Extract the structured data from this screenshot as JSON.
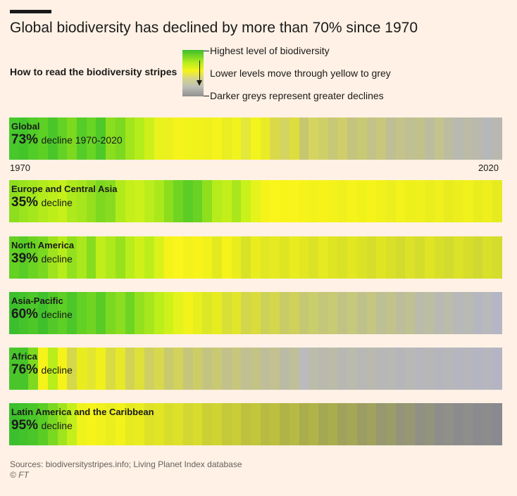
{
  "chart_data": {
    "type": "heatmap",
    "title": "Global biodiversity has declined by more than 70% since 1970",
    "legend": {
      "heading": "How to read the biodiversity stripes",
      "items": [
        "Highest level of biodiversity",
        "Lower levels move through yellow to grey",
        "Darker greys represent greater declines"
      ],
      "colors": [
        "#3cbf2c",
        "#b8ee1c",
        "#f6f31a",
        "#d4d48a",
        "#bdbdb7",
        "#8f8f8f"
      ]
    },
    "x_start": "1970",
    "x_end": "2020",
    "years": [
      1970,
      2020
    ],
    "series": [
      {
        "name": "Global",
        "decline_pct": "73%",
        "decline_text": "decline 1970-2020",
        "stripe_colors": [
          "#47c92b",
          "#43c52a",
          "#52cc26",
          "#5cd025",
          "#49c72a",
          "#63d224",
          "#7dd820",
          "#55cc27",
          "#68d423",
          "#4ec929",
          "#8ade1f",
          "#7cd821",
          "#a1e51d",
          "#b5ec1b",
          "#cdf01a",
          "#e9f31b",
          "#ecf01f",
          "#f6f31a",
          "#f3f31c",
          "#f1f21c",
          "#eef11d",
          "#f6f31c",
          "#e9ed22",
          "#f0f31c",
          "#e3e83a",
          "#f3f41b",
          "#eaeb28",
          "#dada49",
          "#d4d460",
          "#dddd3e",
          "#c7c770",
          "#d5d461",
          "#cfcf68",
          "#c8c878",
          "#cfce6a",
          "#c4c47e",
          "#c9c974",
          "#c3c289",
          "#c8c77c",
          "#bebf94",
          "#c3c38a",
          "#bfc093",
          "#c1c18c",
          "#bcbd9e",
          "#c3c48d",
          "#bcbca1",
          "#b8b9b0",
          "#bbbba7",
          "#b9b9ae",
          "#b6b7b8",
          "#b8b8b0"
        ]
      },
      {
        "name": "Europe and Central Asia",
        "decline_pct": "35%",
        "decline_text": "decline",
        "stripe_colors": [
          "#8dde1e",
          "#9be31d",
          "#a3e71c",
          "#b2ea1b",
          "#bcee1a",
          "#c5f01a",
          "#aee91c",
          "#a5e61c",
          "#94e01e",
          "#7dd820",
          "#88dc1f",
          "#b1ea1b",
          "#c4ef1a",
          "#cbf11a",
          "#b9ed1b",
          "#aae81c",
          "#8bdd1e",
          "#6fd422",
          "#5ccd24",
          "#69d223",
          "#8edf1e",
          "#b6ec1b",
          "#c2ef1a",
          "#a9e71c",
          "#c9f11a",
          "#e4f31b",
          "#f6f31a",
          "#faf51a",
          "#f8f41a",
          "#f9f41a",
          "#f6f31a",
          "#f3f21b",
          "#f7f31a",
          "#f4f21b",
          "#f0f01c",
          "#f5f31a",
          "#f2f21b",
          "#f6f31a",
          "#f1f11b",
          "#ecef1d",
          "#f3f21b",
          "#eef01c",
          "#f0f11c",
          "#ebee1d",
          "#eff01c",
          "#e8ec1e",
          "#edef1d",
          "#f1f11c",
          "#e9ed1e",
          "#eeef1d",
          "#e6eb1f"
        ]
      },
      {
        "name": "North America",
        "decline_pct": "39%",
        "decline_text": "decline",
        "stripe_colors": [
          "#64d123",
          "#58cd25",
          "#6bd422",
          "#7ad821",
          "#9ee31d",
          "#b7ec1b",
          "#93e01e",
          "#a9e81c",
          "#86dc1f",
          "#c0ee1a",
          "#aee91c",
          "#98e21d",
          "#b9ed1b",
          "#cff11a",
          "#bcee1a",
          "#dbf21a",
          "#f6f31a",
          "#faf51a",
          "#f4f21b",
          "#f8f41a",
          "#f1f11b",
          "#e2ea1f",
          "#f5f31a",
          "#eaed1d",
          "#d8e227",
          "#e9ed1e",
          "#e1e722",
          "#e6ea20",
          "#dfe523",
          "#e9ec1e",
          "#e2e722",
          "#dce326",
          "#e6ea20",
          "#e0e523",
          "#dae226",
          "#e3e722",
          "#dbe326",
          "#d6de2b",
          "#e0e523",
          "#d8e028",
          "#d3dc2e",
          "#dbe227",
          "#d5dd2c",
          "#dfe424",
          "#d8df29",
          "#d2db2f",
          "#dbe228",
          "#d6dd2b",
          "#d0d931",
          "#d9e029",
          "#d4dc2d"
        ]
      },
      {
        "name": "Asia-Pacific",
        "decline_pct": "60%",
        "decline_text": "decline",
        "stripe_colors": [
          "#3cbf2c",
          "#44c32b",
          "#4ec729",
          "#40c12c",
          "#52c928",
          "#5ecf25",
          "#4bc72a",
          "#62d124",
          "#70d522",
          "#58cc26",
          "#7bd821",
          "#8ade1f",
          "#6dd422",
          "#93e01e",
          "#a6e61c",
          "#bbee1a",
          "#cff11a",
          "#e3f31b",
          "#f1f31a",
          "#e9ef1d",
          "#dce826",
          "#e6ec20",
          "#d8df37",
          "#e2e62a",
          "#d1d64a",
          "#dadc3c",
          "#ccd15a",
          "#d4d64c",
          "#c9cc66",
          "#cfd15a",
          "#c5c873",
          "#cacd6b",
          "#c4c67a",
          "#c8ca74",
          "#c1c385",
          "#c6c87b",
          "#bfc18c",
          "#c4c682",
          "#bdbf94",
          "#c1c38b",
          "#bbbd9c",
          "#bfc193",
          "#babbaa",
          "#bcbea2",
          "#b8b9b2",
          "#bbbcaa",
          "#b7b8b8",
          "#b9bab4",
          "#b5b6bf",
          "#b8b9bc",
          "#b4b6c6"
        ]
      },
      {
        "name": "Africa",
        "decline_pct": "76%",
        "decline_text": "decline",
        "stripe_colors": [
          "#4ac62a",
          "#47c52a",
          "#7fd920",
          "#f6f31a",
          "#b9ed1b",
          "#f6f31a",
          "#d4d84a",
          "#e9ed1e",
          "#e3e631",
          "#f0f01c",
          "#d9db45",
          "#e6e82a",
          "#d2d356",
          "#dde03a",
          "#cfcf62",
          "#d7d84e",
          "#c9c96e",
          "#d2d25c",
          "#c6c67a",
          "#cdcd68",
          "#c4c482",
          "#c9c974",
          "#c2c18b",
          "#c7c67c",
          "#c0c093",
          "#c4c386",
          "#bebe9b",
          "#c2c18f",
          "#bbbba5",
          "#bfbf99",
          "#bababf",
          "#bcbcaa",
          "#b9b9ae",
          "#bbbba8",
          "#b8b8b2",
          "#babaad",
          "#b7b7b6",
          "#b9b9b0",
          "#b7b7b8",
          "#b8b8b4",
          "#b6b6ba",
          "#b8b8b6",
          "#b6b6bc",
          "#b7b7b8",
          "#b5b5be",
          "#b7b7ba",
          "#b5b5c0",
          "#b6b6bc",
          "#b4b4c2",
          "#b6b6be",
          "#b4b4c4"
        ]
      },
      {
        "name": "Latin America and the Caribbean",
        "decline_pct": "95%",
        "decline_text": "decline",
        "stripe_colors": [
          "#3cbf2c",
          "#42c22b",
          "#4bc62a",
          "#5acd25",
          "#79d821",
          "#a0e41d",
          "#c4ef1a",
          "#eef31b",
          "#f6f31a",
          "#f1f11c",
          "#ebee1e",
          "#f3f21b",
          "#e6ea20",
          "#e9ec1e",
          "#dde228",
          "#e1e524",
          "#d8dd2c",
          "#dde12a",
          "#d2d731",
          "#d8dc2d",
          "#cbd035",
          "#d0d432",
          "#c4c93a",
          "#c9cd37",
          "#bdc13e",
          "#c2c63b",
          "#b7bb42",
          "#bcbf3f",
          "#b0b447",
          "#b6b944",
          "#aaad4c",
          "#b0b348",
          "#a5a853",
          "#aaad4e",
          "#a0a25b",
          "#a5a756",
          "#9b9d64",
          "#a0a25e",
          "#97986f",
          "#9b9d68",
          "#939479",
          "#979873",
          "#909084",
          "#93947d",
          "#8d8d8b",
          "#909088",
          "#8b8b8d",
          "#8e8e8b",
          "#8a8a8f",
          "#8c8c8d",
          "#898991"
        ]
      }
    ]
  },
  "footer": {
    "sources": "Sources: biodiversitystripes.info; Living Planet Index database",
    "copyright": "© FT"
  }
}
